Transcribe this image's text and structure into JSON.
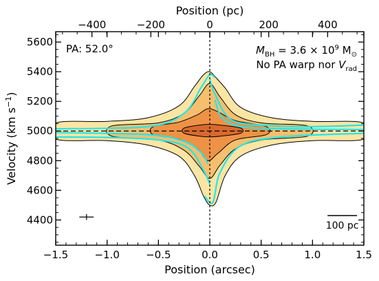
{
  "chart_data": {
    "type": "contour",
    "xlabel": "Position (arcsec)",
    "ylabel_main": "Velocity (km s",
    "ylabel_sup": "−1",
    "ylabel_tail": ")",
    "top_xlabel": "Position (pc)",
    "xlim": [
      -1.5,
      1.5
    ],
    "ylim": [
      4230,
      5670
    ],
    "top_xlim": [
      -523,
      523
    ],
    "x_ticks": [
      -1.5,
      -1.0,
      -0.5,
      0.0,
      0.5,
      1.0,
      1.5
    ],
    "x_tick_labels": [
      "−1.5",
      "−1.0",
      "−0.5",
      "0.0",
      "0.5",
      "1.0",
      "1.5"
    ],
    "y_ticks": [
      4400,
      4600,
      4800,
      5000,
      5200,
      5400,
      5600
    ],
    "y_tick_labels": [
      "4400",
      "4600",
      "4800",
      "5000",
      "5200",
      "5400",
      "5600"
    ],
    "top_ticks": [
      -400,
      -200,
      0,
      200,
      400
    ],
    "top_tick_labels": [
      "−400",
      "−200",
      "0",
      "200",
      "400"
    ],
    "systemic_velocity": 5000,
    "center_position": 0.0,
    "annotations": {
      "pa_label": "PA: 52.0°",
      "mbh_prefix": "M",
      "mbh_sub": "BH",
      "mbh_value": " = 3.6 × 10",
      "mbh_exp": "9",
      "mbh_unit": " M",
      "mbh_unit_sub": "⊙",
      "warp_text": "No PA warp nor ",
      "warp_v": "V",
      "warp_sub": "rad",
      "scalebar_label": "100 pc",
      "scalebar_pc": 100
    },
    "error_cross": {
      "x": -1.2,
      "y": 4420,
      "dx": 0.07,
      "dy": 20
    },
    "colors": {
      "data_outer": "#fbe5a4",
      "data_mid": "#f5bf6e",
      "data_inner": "#ee9245",
      "data_core": "#d8692e",
      "data_contour": "#000000",
      "model_contour": "#22e6ea"
    },
    "contour_levels": [
      {
        "level": "outer",
        "left_rc": [
          [
            -1.5,
            4945,
            5055
          ],
          [
            -1.0,
            4935,
            5065
          ],
          [
            -0.6,
            4905,
            5090
          ],
          [
            -0.3,
            4830,
            5170
          ],
          [
            -0.15,
            4700,
            5300
          ],
          [
            -0.06,
            4560,
            5380
          ],
          [
            0.0,
            4500,
            5400
          ]
        ],
        "right_rc": [
          [
            0.06,
            4520,
            5360
          ],
          [
            0.15,
            4700,
            5290
          ],
          [
            0.3,
            4830,
            5160
          ],
          [
            0.6,
            4905,
            5090
          ],
          [
            1.0,
            4935,
            5065
          ],
          [
            1.5,
            4945,
            5055
          ]
        ]
      },
      {
        "level": "mid",
        "left_rc": [
          [
            -0.95,
            4965,
            5035
          ],
          [
            -0.5,
            4940,
            5055
          ],
          [
            -0.25,
            4870,
            5120
          ],
          [
            -0.1,
            4760,
            5240
          ],
          [
            0.0,
            4680,
            5320
          ]
        ],
        "right_rc": [
          [
            0.1,
            4770,
            5230
          ],
          [
            0.25,
            4880,
            5110
          ],
          [
            0.5,
            4940,
            5055
          ],
          [
            0.95,
            4965,
            5035
          ]
        ]
      },
      {
        "level": "inner",
        "left_rc": [
          [
            -0.55,
            4975,
            5030
          ],
          [
            -0.3,
            4945,
            5060
          ],
          [
            -0.12,
            4880,
            5110
          ],
          [
            -0.02,
            4800,
            5150
          ]
        ],
        "right_rc": [
          [
            0.08,
            4850,
            5130
          ],
          [
            0.25,
            4940,
            5070
          ],
          [
            0.55,
            4975,
            5030
          ]
        ]
      },
      {
        "level": "core",
        "left_rc": [
          [
            -0.25,
            4985,
            5020
          ],
          [
            -0.1,
            4965,
            5040
          ],
          [
            0.0,
            4960,
            5045
          ]
        ],
        "right_rc": [
          [
            0.1,
            4965,
            5040
          ],
          [
            0.3,
            4985,
            5020
          ]
        ]
      }
    ],
    "model_contours": [
      {
        "x": [
          -1.5,
          -0.6,
          -0.25,
          -0.08,
          0.0,
          0.05
        ],
        "v": [
          5015,
          5030,
          5120,
          5300,
          5380,
          5360
        ]
      },
      {
        "x": [
          -1.5,
          -0.6,
          -0.25,
          -0.08,
          -0.02
        ],
        "v": [
          4990,
          4975,
          4930,
          4850,
          4780
        ]
      },
      {
        "x": [
          -0.05,
          0.03,
          0.1,
          0.3,
          0.7,
          1.5
        ],
        "v": [
          4560,
          4520,
          4720,
          4900,
          4960,
          4985
        ]
      },
      {
        "x": [
          0.05,
          0.12,
          0.3,
          0.7,
          1.5
        ],
        "v": [
          5210,
          5090,
          5030,
          5015,
          5010
        ]
      },
      {
        "x": [
          -1.5,
          -0.9,
          -0.45,
          -0.2,
          -0.05,
          0.0
        ],
        "v": [
          4960,
          4955,
          4935,
          4880,
          4720,
          4640
        ]
      },
      {
        "x": [
          0.0,
          0.05,
          0.2,
          0.5,
          1.0,
          1.5
        ],
        "v": [
          5350,
          5250,
          5080,
          5040,
          5030,
          5040
        ]
      }
    ]
  }
}
